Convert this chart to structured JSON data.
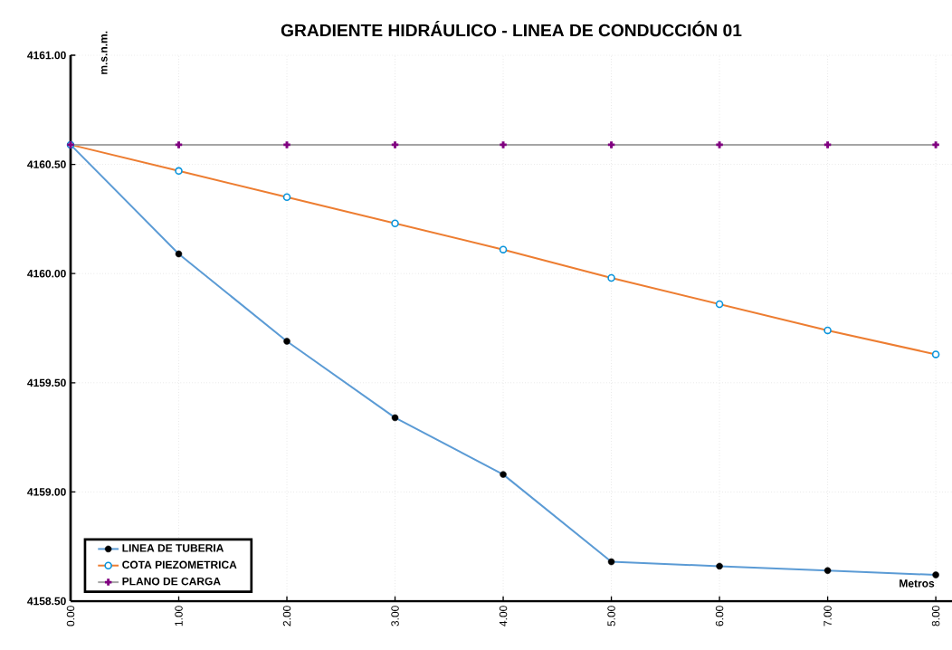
{
  "chart_data": {
    "type": "line",
    "title": "**GRADIENTE HIDRÁULICO - LINEA DE CONDUCCIÓN 01**",
    "xlabel": "Metros",
    "ylabel": "m.s.n.m.",
    "x": [
      0,
      1,
      2,
      3,
      4,
      5,
      6,
      7,
      8
    ],
    "series": [
      {
        "name": "LINEA DE TUBERIA",
        "color": "#5b9bd5",
        "marker": "circle",
        "values": [
          4160.59,
          4160.09,
          4159.69,
          4159.34,
          4159.08,
          4158.68,
          4158.66,
          4158.64,
          4158.62
        ]
      },
      {
        "name": "COTA PIEZOMETRICA",
        "color": "#ed7d31",
        "marker": "circle",
        "values": [
          4160.59,
          4160.47,
          4160.35,
          4160.23,
          4160.11,
          4159.98,
          4159.86,
          4159.74,
          4159.63
        ]
      },
      {
        "name": "PLANO DE CARGA",
        "color": "#a5a5a5",
        "marker": "cross",
        "values": [
          4160.59,
          4160.59,
          4160.59,
          4160.59,
          4160.59,
          4160.59,
          4160.59,
          4160.59,
          4160.59
        ]
      }
    ],
    "xlim": [
      0,
      8.15
    ],
    "ylim": [
      4158.5,
      4161
    ],
    "xticks": [
      {
        "value": 0,
        "label": "0.00"
      },
      {
        "value": 1,
        "label": "1.00"
      },
      {
        "value": 2,
        "label": "2.00"
      },
      {
        "value": 3,
        "label": "3.00"
      },
      {
        "value": 4,
        "label": "4.00"
      },
      {
        "value": 5,
        "label": "5.00"
      },
      {
        "value": 6,
        "label": "6.00"
      },
      {
        "value": 7,
        "label": "7.00"
      },
      {
        "value": 8,
        "label": "8.00"
      }
    ],
    "yticks": [
      {
        "value": 4158.5,
        "label": "4158.50"
      },
      {
        "value": 4159,
        "label": "4159.00"
      },
      {
        "value": 4159.5,
        "label": "4159.50"
      },
      {
        "value": 4160,
        "label": "4160.00"
      },
      {
        "value": 4160.5,
        "label": "4160.50"
      },
      {
        "value": 4161,
        "label": "4161.00"
      }
    ],
    "grid": true,
    "legend": "bottom left",
    "line_style": "solid"
  }
}
